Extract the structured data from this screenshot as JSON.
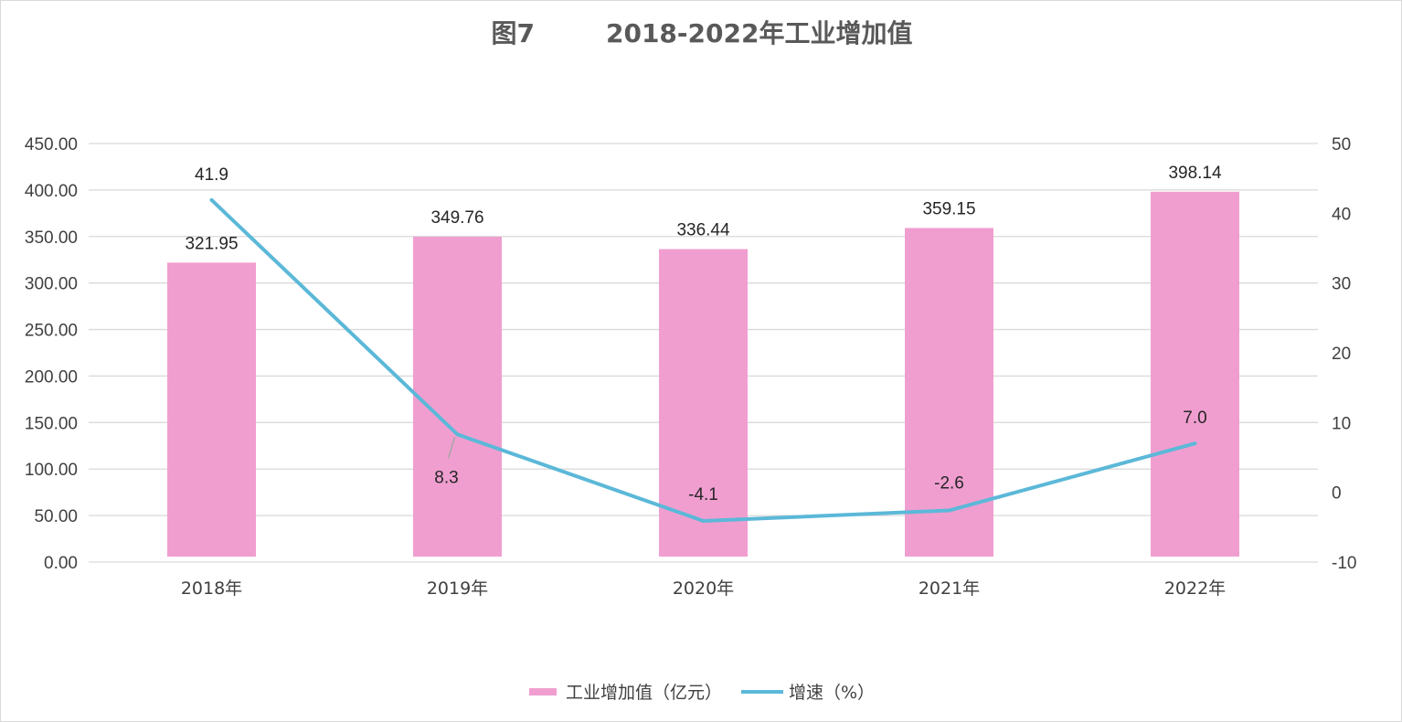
{
  "title": "图7        2018-2022年工业增加值",
  "chart_data": {
    "type": "bar",
    "categories": [
      "2018年",
      "2019年",
      "2020年",
      "2021年",
      "2022年"
    ],
    "series": [
      {
        "name": "工业增加值（亿元）",
        "type": "bar",
        "axis": "left",
        "color": "#f09ed0",
        "values": [
          321.95,
          349.76,
          336.44,
          359.15,
          398.14
        ],
        "labels": [
          "321.95",
          "349.76",
          "336.44",
          "359.15",
          "398.14"
        ]
      },
      {
        "name": "增速（%）",
        "type": "line",
        "axis": "right",
        "color": "#5bb8d8",
        "values": [
          41.9,
          8.3,
          -4.1,
          -2.6,
          7.0
        ],
        "labels": [
          "41.9",
          "8.3",
          "-4.1",
          "-2.6",
          "7.0"
        ]
      }
    ],
    "y_left": {
      "range": [
        0,
        450
      ],
      "ticks": [
        "0.00",
        "50.00",
        "100.00",
        "150.00",
        "200.00",
        "250.00",
        "300.00",
        "350.00",
        "400.00",
        "450.00"
      ]
    },
    "y_right": {
      "range": [
        -10,
        50
      ],
      "ticks": [
        "-10",
        "0",
        "10",
        "20",
        "30",
        "40",
        "50"
      ]
    },
    "grid": true,
    "legend_position": "bottom"
  }
}
